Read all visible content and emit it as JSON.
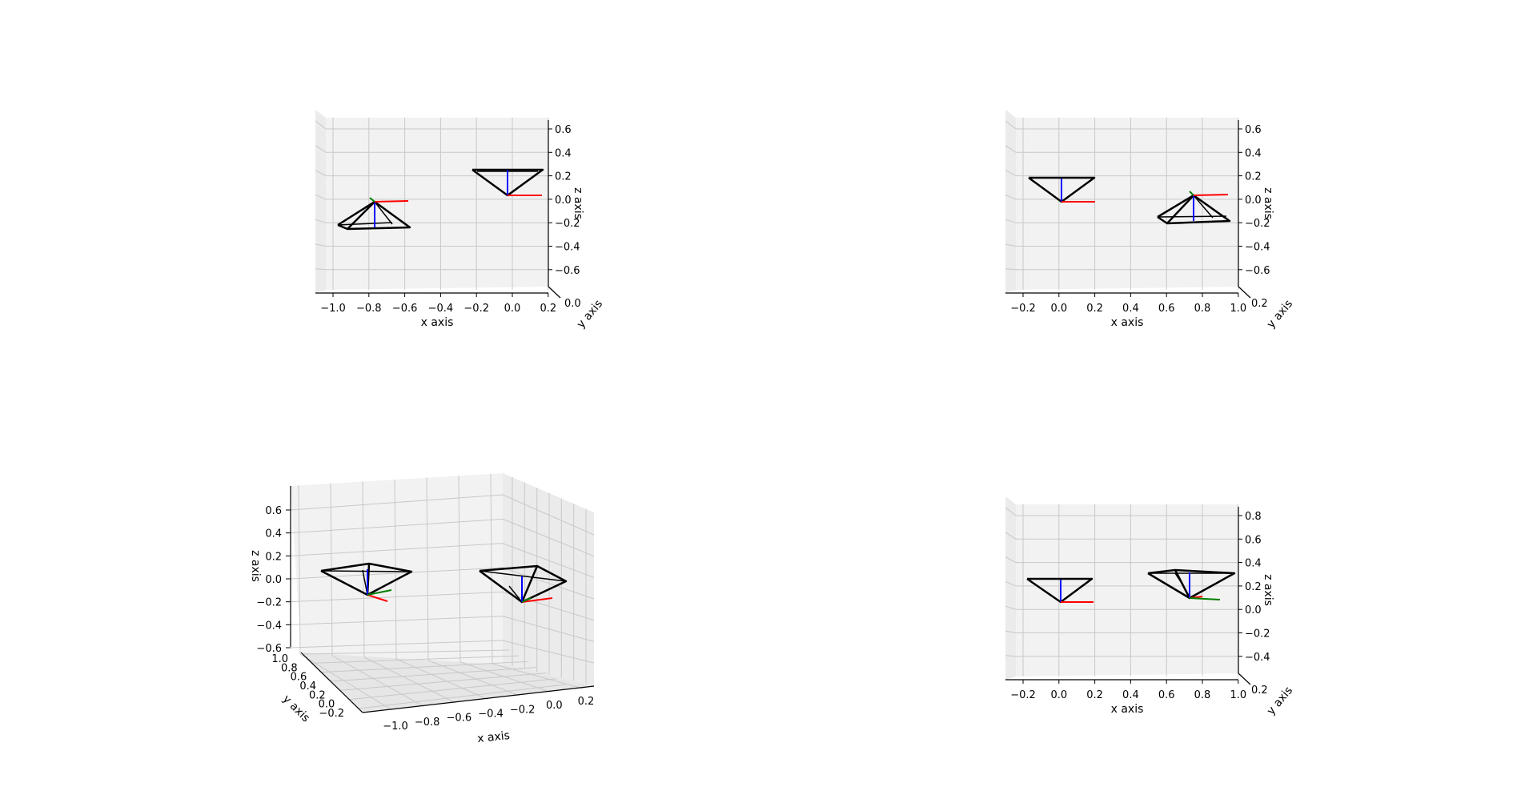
{
  "colors": {
    "x_axis_arrow": "#ff0000",
    "y_axis_arrow": "#008000",
    "z_axis_arrow": "#0000ff",
    "camera": "#000000",
    "grid": "#c8c8c8",
    "pane": "#f2f2f2"
  },
  "chart_data": [
    {
      "type": "3d-wireframe",
      "view": "front",
      "xlabel": "x axis",
      "ylabel": "y axis",
      "zlabel": "z axis",
      "x_ticks": [
        "−1.0",
        "−0.8",
        "−0.6",
        "−0.4",
        "−0.2",
        "0.0",
        "0.2"
      ],
      "z_ticks": [
        "0.6",
        "0.4",
        "0.2",
        "0.0",
        "−0.2",
        "−0.4",
        "−0.6"
      ],
      "y_ticks_overlapped": "0.0",
      "xlim": [
        -1.1,
        0.25
      ],
      "zlim": [
        -0.75,
        0.7
      ],
      "cameras": [
        {
          "x": -0.75,
          "z": 0.0,
          "orientation": "apex-up"
        },
        {
          "x": 0.0,
          "z": 0.05,
          "orientation": "apex-down"
        }
      ]
    },
    {
      "type": "3d-wireframe",
      "view": "front",
      "xlabel": "x axis",
      "ylabel": "y axis",
      "zlabel": "z axis",
      "x_ticks": [
        "−0.2",
        "0.0",
        "0.2",
        "0.4",
        "0.6",
        "0.8",
        "1.0"
      ],
      "z_ticks": [
        "0.6",
        "0.4",
        "0.2",
        "0.0",
        "−0.2",
        "−0.4",
        "−0.6"
      ],
      "y_ticks_overlapped": "0.2",
      "xlim": [
        -0.3,
        1.05
      ],
      "zlim": [
        -0.75,
        0.7
      ],
      "cameras": [
        {
          "x": 0.0,
          "z": 0.0,
          "orientation": "apex-down"
        },
        {
          "x": 0.75,
          "z": 0.1,
          "orientation": "apex-up"
        }
      ]
    },
    {
      "type": "3d-wireframe",
      "view": "oblique",
      "xlabel": "x axis",
      "ylabel": "y axis",
      "zlabel": "z axis",
      "x_ticks": [
        "−1.0",
        "−0.8",
        "−0.6",
        "−0.4",
        "−0.2",
        "0.0",
        "0.2"
      ],
      "y_ticks": [
        "1.0",
        "0.8",
        "0.6",
        "0.4",
        "0.2",
        "0.0",
        "−0.2"
      ],
      "z_ticks": [
        "0.6",
        "0.4",
        "0.2",
        "0.0",
        "−0.2",
        "−0.4",
        "−0.6"
      ],
      "cameras": [
        {
          "x": -0.75,
          "y": 0.0,
          "z": -0.15,
          "orientation": "apex-down"
        },
        {
          "x": 0.0,
          "y": 0.0,
          "z": -0.2,
          "orientation": "apex-down"
        }
      ]
    },
    {
      "type": "3d-wireframe",
      "view": "front",
      "xlabel": "x axis",
      "ylabel": "y axis",
      "zlabel": "z axis",
      "x_ticks": [
        "−0.2",
        "0.0",
        "0.2",
        "0.4",
        "0.6",
        "0.8",
        "1.0"
      ],
      "z_ticks": [
        "0.8",
        "0.6",
        "0.4",
        "0.2",
        "0.0",
        "−0.2",
        "−0.4"
      ],
      "y_ticks_overlapped": "0.2",
      "xlim": [
        -0.3,
        1.05
      ],
      "zlim": [
        -0.55,
        0.9
      ],
      "cameras": [
        {
          "x": 0.0,
          "z": 0.0,
          "orientation": "apex-down"
        },
        {
          "x": 0.75,
          "z": 0.1,
          "orientation": "apex-down"
        }
      ]
    }
  ]
}
